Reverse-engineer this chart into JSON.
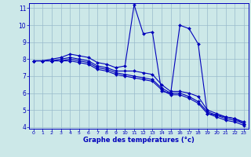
{
  "x": [
    0,
    1,
    2,
    3,
    4,
    5,
    6,
    7,
    8,
    9,
    10,
    11,
    12,
    13,
    14,
    15,
    16,
    17,
    18,
    19,
    20,
    21,
    22,
    23
  ],
  "line1": [
    7.9,
    7.9,
    8.0,
    8.1,
    8.3,
    8.2,
    8.1,
    7.8,
    7.7,
    7.5,
    7.6,
    11.2,
    9.5,
    9.6,
    6.1,
    6.0,
    10.0,
    9.8,
    8.9,
    4.8,
    4.7,
    4.6,
    4.5,
    4.2
  ],
  "line2": [
    7.9,
    7.9,
    7.9,
    8.0,
    8.1,
    8.0,
    7.9,
    7.6,
    7.5,
    7.3,
    7.3,
    7.3,
    7.2,
    7.1,
    6.5,
    6.1,
    6.1,
    6.0,
    5.8,
    5.0,
    4.8,
    4.6,
    4.5,
    4.3
  ],
  "line3": [
    7.9,
    7.9,
    7.9,
    7.9,
    8.0,
    7.9,
    7.8,
    7.5,
    7.4,
    7.2,
    7.1,
    7.0,
    6.9,
    6.8,
    6.3,
    6.0,
    6.0,
    5.8,
    5.5,
    4.9,
    4.7,
    4.5,
    4.4,
    4.2
  ],
  "line4": [
    7.9,
    7.9,
    7.9,
    7.9,
    7.9,
    7.8,
    7.7,
    7.4,
    7.3,
    7.1,
    7.0,
    6.9,
    6.8,
    6.7,
    6.2,
    5.9,
    5.9,
    5.7,
    5.4,
    4.8,
    4.6,
    4.4,
    4.3,
    4.1
  ],
  "bg_color": "#cce8e8",
  "line_color": "#0000bb",
  "grid_color": "#99bbcc",
  "xlabel": "Graphe des températures (°c)",
  "ylim": [
    3.9,
    11.3
  ],
  "xlim": [
    -0.5,
    23.5
  ],
  "yticks": [
    4,
    5,
    6,
    7,
    8,
    9,
    10,
    11
  ],
  "xticks": [
    0,
    1,
    2,
    3,
    4,
    5,
    6,
    7,
    8,
    9,
    10,
    11,
    12,
    13,
    14,
    15,
    16,
    17,
    18,
    19,
    20,
    21,
    22,
    23
  ]
}
